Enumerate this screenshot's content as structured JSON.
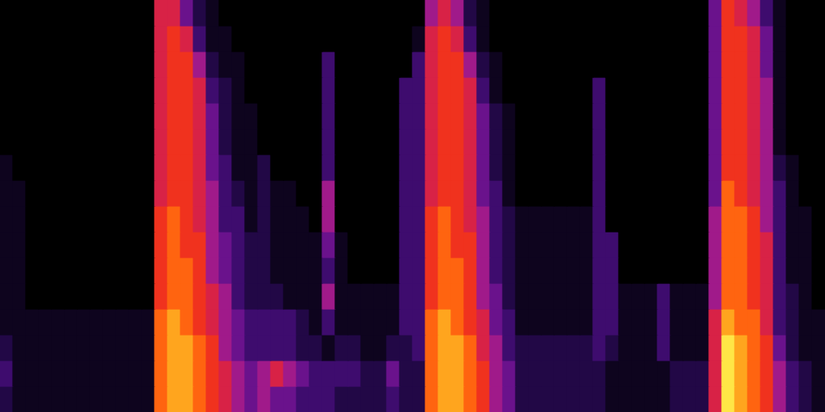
{
  "chart_data": {
    "type": "heatmap",
    "tick_labels": false,
    "grid": false,
    "ylim": [
      0,
      16
    ],
    "zlim": [
      0,
      10
    ],
    "cells": [
      [
        0,
        0,
        0,
        0,
        0,
        0,
        1,
        1,
        1,
        1,
        1,
        1,
        1,
        2,
        3,
        2
      ],
      [
        0,
        0,
        0,
        0,
        0,
        0,
        0,
        1,
        1,
        1,
        1,
        1,
        1,
        1,
        1,
        1
      ],
      [
        0,
        0,
        0,
        0,
        0,
        0,
        0,
        0,
        0,
        0,
        0,
        0,
        1,
        1,
        1,
        1
      ],
      [
        0,
        0,
        0,
        0,
        0,
        0,
        0,
        0,
        0,
        0,
        0,
        0,
        1,
        1,
        1,
        1
      ],
      [
        0,
        0,
        0,
        0,
        0,
        0,
        0,
        0,
        0,
        0,
        0,
        0,
        1,
        1,
        1,
        1
      ],
      [
        0,
        0,
        0,
        0,
        0,
        0,
        0,
        0,
        0,
        0,
        0,
        0,
        1,
        1,
        1,
        1
      ],
      [
        0,
        0,
        0,
        0,
        0,
        0,
        0,
        0,
        0,
        0,
        0,
        0,
        1,
        1,
        1,
        1
      ],
      [
        0,
        0,
        0,
        0,
        0,
        0,
        0,
        0,
        0,
        0,
        0,
        0,
        1,
        1,
        1,
        1
      ],
      [
        0,
        0,
        0,
        0,
        0,
        0,
        0,
        0,
        0,
        0,
        0,
        0,
        1,
        1,
        1,
        1
      ],
      [
        0,
        0,
        0,
        0,
        0,
        0,
        0,
        0,
        0,
        0,
        0,
        0,
        1,
        1,
        1,
        1
      ],
      [
        0,
        0,
        0,
        0,
        0,
        0,
        0,
        0,
        0,
        0,
        0,
        0,
        1,
        1,
        1,
        1
      ],
      [
        0,
        0,
        0,
        0,
        0,
        0,
        0,
        0,
        0,
        0,
        0,
        0,
        1,
        1,
        1,
        1
      ],
      [
        6,
        6,
        6,
        6,
        6,
        6,
        6,
        6,
        7,
        7,
        7,
        7,
        8,
        8,
        8,
        8
      ],
      [
        6,
        7,
        7,
        7,
        7,
        7,
        7,
        7,
        8,
        8,
        8,
        8,
        9,
        9,
        9,
        9
      ],
      [
        4,
        6,
        7,
        7,
        7,
        7,
        7,
        7,
        7,
        7,
        8,
        8,
        8,
        9,
        9,
        9
      ],
      [
        2,
        3,
        5,
        6,
        6,
        6,
        6,
        6,
        6,
        7,
        7,
        7,
        7,
        8,
        8,
        8
      ],
      [
        1,
        1,
        2,
        3,
        4,
        4,
        4,
        5,
        5,
        5,
        5,
        6,
        6,
        7,
        7,
        7
      ],
      [
        0,
        1,
        1,
        2,
        2,
        2,
        3,
        3,
        3,
        4,
        4,
        5,
        5,
        5,
        6,
        6
      ],
      [
        0,
        0,
        1,
        1,
        1,
        1,
        1,
        2,
        3,
        3,
        3,
        3,
        4,
        4,
        5,
        5
      ],
      [
        0,
        0,
        0,
        0,
        1,
        1,
        1,
        1,
        1,
        2,
        2,
        2,
        3,
        3,
        4,
        4
      ],
      [
        0,
        0,
        0,
        0,
        0,
        0,
        2,
        2,
        2,
        2,
        2,
        2,
        3,
        3,
        5,
        5
      ],
      [
        0,
        0,
        0,
        0,
        0,
        0,
        0,
        1,
        1,
        1,
        1,
        2,
        3,
        3,
        6,
        4
      ],
      [
        0,
        0,
        0,
        0,
        0,
        0,
        0,
        1,
        1,
        1,
        1,
        1,
        3,
        3,
        5,
        4
      ],
      [
        0,
        0,
        0,
        0,
        0,
        0,
        0,
        0,
        1,
        1,
        1,
        1,
        2,
        2,
        4,
        3
      ],
      [
        0,
        0,
        0,
        0,
        0,
        0,
        0,
        0,
        0,
        1,
        1,
        1,
        1,
        2,
        3,
        3
      ],
      [
        0,
        0,
        3,
        3,
        3,
        3,
        3,
        5,
        5,
        4,
        3,
        5,
        3,
        1,
        3,
        3
      ],
      [
        0,
        0,
        0,
        0,
        0,
        0,
        0,
        0,
        0,
        1,
        1,
        1,
        1,
        2,
        3,
        2
      ],
      [
        0,
        0,
        0,
        0,
        0,
        0,
        0,
        0,
        0,
        0,
        0,
        1,
        1,
        2,
        3,
        2
      ],
      [
        0,
        0,
        0,
        0,
        0,
        0,
        0,
        0,
        0,
        0,
        0,
        1,
        1,
        1,
        2,
        2
      ],
      [
        0,
        0,
        0,
        0,
        0,
        0,
        0,
        0,
        0,
        0,
        0,
        1,
        1,
        1,
        2,
        2
      ],
      [
        0,
        0,
        0,
        0,
        0,
        0,
        0,
        0,
        0,
        0,
        0,
        1,
        1,
        2,
        4,
        3
      ],
      [
        0,
        0,
        0,
        3,
        3,
        3,
        3,
        3,
        3,
        3,
        3,
        3,
        3,
        2,
        2,
        2
      ],
      [
        0,
        1,
        3,
        3,
        3,
        3,
        3,
        3,
        3,
        3,
        3,
        3,
        3,
        3,
        2,
        2
      ],
      [
        5,
        6,
        6,
        6,
        6,
        6,
        6,
        6,
        7,
        7,
        7,
        7,
        8,
        8,
        8,
        8
      ],
      [
        6,
        7,
        7,
        7,
        7,
        7,
        7,
        7,
        8,
        8,
        8,
        8,
        9,
        9,
        9,
        9
      ],
      [
        5,
        6,
        7,
        7,
        7,
        7,
        7,
        7,
        7,
        7,
        8,
        8,
        8,
        9,
        9,
        9
      ],
      [
        2,
        3,
        5,
        6,
        6,
        6,
        6,
        6,
        6,
        7,
        7,
        7,
        7,
        8,
        8,
        8
      ],
      [
        1,
        1,
        2,
        3,
        4,
        4,
        4,
        4,
        5,
        5,
        5,
        5,
        6,
        6,
        7,
        7
      ],
      [
        0,
        0,
        1,
        1,
        2,
        2,
        2,
        3,
        3,
        3,
        3,
        4,
        4,
        5,
        5,
        5
      ],
      [
        0,
        0,
        0,
        0,
        1,
        1,
        1,
        1,
        2,
        2,
        2,
        2,
        3,
        3,
        4,
        4
      ],
      [
        0,
        0,
        0,
        0,
        0,
        0,
        0,
        0,
        1,
        1,
        1,
        1,
        1,
        2,
        2,
        2
      ],
      [
        0,
        0,
        0,
        0,
        0,
        0,
        0,
        0,
        1,
        1,
        1,
        1,
        1,
        2,
        2,
        2
      ],
      [
        0,
        0,
        0,
        0,
        0,
        0,
        0,
        0,
        1,
        1,
        1,
        1,
        1,
        2,
        2,
        2
      ],
      [
        0,
        0,
        0,
        0,
        0,
        0,
        0,
        0,
        1,
        1,
        1,
        1,
        1,
        2,
        2,
        2
      ],
      [
        0,
        0,
        0,
        0,
        0,
        0,
        0,
        0,
        1,
        1,
        1,
        1,
        1,
        2,
        2,
        2
      ],
      [
        0,
        0,
        0,
        0,
        0,
        0,
        0,
        0,
        1,
        1,
        1,
        1,
        1,
        2,
        2,
        2
      ],
      [
        0,
        0,
        0,
        3,
        3,
        3,
        3,
        3,
        3,
        3,
        3,
        3,
        3,
        3,
        2,
        2
      ],
      [
        0,
        0,
        0,
        0,
        0,
        0,
        0,
        0,
        0,
        3,
        3,
        3,
        3,
        2,
        1,
        1
      ],
      [
        0,
        0,
        0,
        0,
        0,
        0,
        0,
        0,
        0,
        0,
        0,
        1,
        1,
        1,
        1,
        1
      ],
      [
        0,
        0,
        0,
        0,
        0,
        0,
        0,
        0,
        0,
        0,
        0,
        1,
        1,
        1,
        1,
        1
      ],
      [
        0,
        0,
        0,
        0,
        0,
        0,
        0,
        0,
        0,
        0,
        0,
        1,
        1,
        1,
        1,
        1
      ],
      [
        0,
        0,
        0,
        0,
        0,
        0,
        0,
        0,
        0,
        0,
        0,
        3,
        3,
        3,
        1,
        1
      ],
      [
        0,
        0,
        0,
        0,
        0,
        0,
        0,
        0,
        0,
        0,
        0,
        1,
        1,
        1,
        2,
        2
      ],
      [
        0,
        0,
        0,
        0,
        0,
        0,
        0,
        0,
        0,
        0,
        0,
        1,
        1,
        1,
        2,
        2
      ],
      [
        0,
        0,
        0,
        0,
        0,
        0,
        0,
        0,
        0,
        0,
        0,
        1,
        1,
        1,
        2,
        2
      ],
      [
        4,
        4,
        4,
        4,
        4,
        4,
        4,
        4,
        5,
        5,
        5,
        5,
        6,
        6,
        6,
        6
      ],
      [
        7,
        7,
        7,
        7,
        7,
        7,
        7,
        8,
        8,
        8,
        8,
        8,
        9,
        10,
        10,
        10
      ],
      [
        6,
        7,
        7,
        7,
        7,
        7,
        7,
        7,
        8,
        8,
        8,
        8,
        8,
        9,
        9,
        9
      ],
      [
        5,
        6,
        6,
        6,
        6,
        6,
        6,
        6,
        7,
        7,
        7,
        7,
        8,
        8,
        8,
        8
      ],
      [
        3,
        4,
        4,
        5,
        5,
        5,
        5,
        5,
        5,
        6,
        6,
        6,
        6,
        7,
        7,
        7
      ],
      [
        1,
        1,
        1,
        1,
        1,
        1,
        2,
        3,
        3,
        3,
        3,
        3,
        3,
        4,
        5,
        5
      ],
      [
        0,
        0,
        0,
        0,
        0,
        0,
        1,
        1,
        1,
        1,
        1,
        2,
        2,
        2,
        3,
        3
      ],
      [
        0,
        0,
        0,
        0,
        0,
        0,
        0,
        0,
        1,
        1,
        1,
        1,
        1,
        1,
        2,
        2
      ],
      [
        0,
        0,
        0,
        0,
        0,
        0,
        0,
        0,
        0,
        0,
        0,
        0,
        1,
        1,
        1,
        1
      ]
    ]
  }
}
